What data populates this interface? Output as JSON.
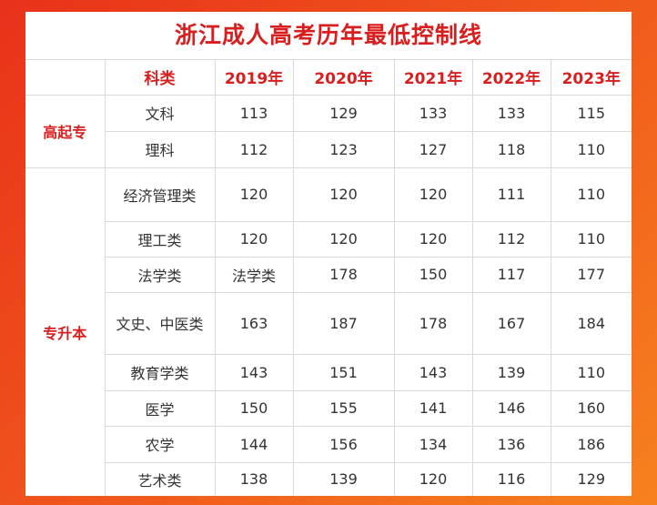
{
  "title": "浙江成人高考历年最低控制线",
  "header": {
    "subject": "科类",
    "years": [
      "2019年",
      "2020年",
      "2021年",
      "2022年",
      "2023年"
    ]
  },
  "groups": [
    {
      "name": "高起专",
      "rows": [
        {
          "subject": "文科",
          "values": [
            "113",
            "129",
            "133",
            "133",
            "115"
          ]
        },
        {
          "subject": "理科",
          "values": [
            "112",
            "123",
            "127",
            "118",
            "110"
          ]
        }
      ]
    },
    {
      "name": "专升本",
      "rows": [
        {
          "subject": "经济管理类",
          "values": [
            "120",
            "120",
            "120",
            "111",
            "110"
          ]
        },
        {
          "subject": "理工类",
          "values": [
            "120",
            "120",
            "120",
            "112",
            "110"
          ]
        },
        {
          "subject": "法学类",
          "values": [
            "法学类",
            "178",
            "150",
            "117",
            "177"
          ]
        },
        {
          "subject": "文史、中医类",
          "values": [
            "163",
            "187",
            "178",
            "167",
            "184"
          ]
        },
        {
          "subject": "教育学类",
          "values": [
            "143",
            "151",
            "143",
            "139",
            "110"
          ]
        },
        {
          "subject": "医学",
          "values": [
            "150",
            "155",
            "141",
            "146",
            "160"
          ]
        },
        {
          "subject": "农学",
          "values": [
            "144",
            "156",
            "134",
            "136",
            "186"
          ]
        },
        {
          "subject": "艺术类",
          "values": [
            "138",
            "139",
            "120",
            "116",
            "129"
          ]
        }
      ]
    }
  ]
}
